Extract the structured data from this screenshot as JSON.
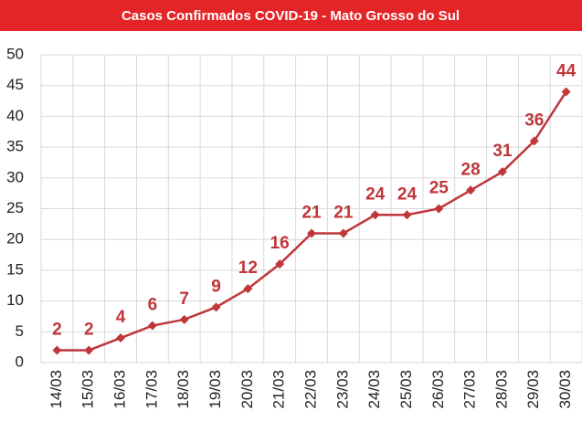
{
  "chart_data": {
    "type": "line",
    "title": "Casos Confirmados COVID-19 -  Mato Grosso do Sul",
    "categories": [
      "14/03",
      "15/03",
      "16/03",
      "17/03",
      "18/03",
      "19/03",
      "20/03",
      "21/03",
      "22/03",
      "23/03",
      "24/03",
      "25/03",
      "26/03",
      "27/03",
      "28/03",
      "29/03",
      "30/03"
    ],
    "series": [
      {
        "name": "Casos Confirmados",
        "color": "#c0363a",
        "values": [
          2,
          2,
          4,
          6,
          7,
          9,
          12,
          16,
          21,
          21,
          24,
          24,
          25,
          28,
          31,
          36,
          44
        ]
      }
    ],
    "ylim": [
      0,
      50
    ],
    "yticks": [
      0,
      5,
      10,
      15,
      20,
      25,
      30,
      35,
      40,
      45,
      50
    ],
    "grid": true
  }
}
